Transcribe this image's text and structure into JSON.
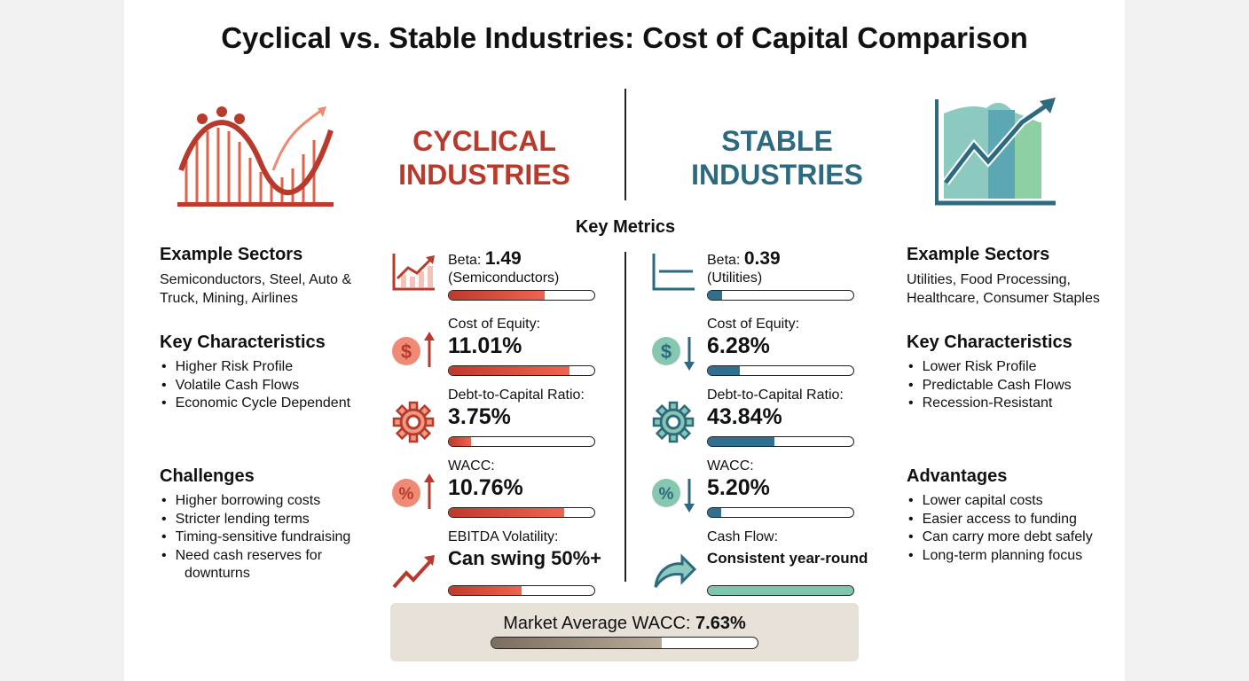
{
  "title": "Cyclical vs. Stable Industries: Cost of Capital Comparison",
  "cyclical": {
    "heading1": "CYCLICAL",
    "heading2": "INDUSTRIES",
    "color": "#b83a2c",
    "sectors_title": "Example Sectors",
    "sectors": "Semiconductors, Steel, Auto & Truck, Mining, Airlines",
    "char_title": "Key Characteristics",
    "characteristics": [
      "Higher Risk Profile",
      "Volatile Cash Flows",
      "Economic Cycle Dependent"
    ],
    "list_title": "Challenges",
    "list": [
      "Higher borrowing costs",
      "Stricter lending terms",
      "Timing-sensitive fundraising",
      "Need cash reserves for",
      "downturns"
    ],
    "metrics": [
      {
        "label": "Beta:",
        "value": "1.49",
        "sub": "(Semiconductors)",
        "fill": 0.66,
        "icon": "bar-chart-up-icon"
      },
      {
        "label": "Cost of Equity:",
        "value": "11.01%",
        "fill": 0.83,
        "icon": "dollar-up-icon"
      },
      {
        "label": "Debt-to-Capital Ratio:",
        "value": "3.75%",
        "fill": 0.15,
        "icon": "gear-icon"
      },
      {
        "label": "WACC:",
        "value": "10.76%",
        "fill": 0.79,
        "icon": "percent-up-icon"
      },
      {
        "label": "EBITDA Volatility:",
        "value": "Can swing 50%+",
        "fill": 0.5,
        "icon": "zigzag-trend-icon"
      }
    ]
  },
  "stable": {
    "heading1": "STABLE",
    "heading2": "INDUSTRIES",
    "color": "#2d6a80",
    "sectors_title": "Example Sectors",
    "sectors": "Utilities, Food Processing, Healthcare, Consumer Staples",
    "char_title": "Key Characteristics",
    "characteristics": [
      "Lower Risk Profile",
      "Predictable Cash Flows",
      "Recession-Resistant"
    ],
    "list_title": "Advantages",
    "list": [
      "Lower capital costs",
      "Easier access to funding",
      "Can carry more debt safely",
      "Long-term planning focus"
    ],
    "metrics": [
      {
        "label": "Beta:",
        "value": "0.39",
        "sub": "(Utilities)",
        "fill": 0.1,
        "icon": "flat-line-chart-icon"
      },
      {
        "label": "Cost of Equity:",
        "value": "6.28%",
        "fill": 0.22,
        "icon": "dollar-down-icon"
      },
      {
        "label": "Debt-to-Capital Ratio:",
        "value": "43.84%",
        "fill": 0.46,
        "icon": "gear-icon"
      },
      {
        "label": "WACC:",
        "value": "5.20%",
        "fill": 0.09,
        "icon": "percent-down-icon"
      },
      {
        "label": "Cash Flow:",
        "value": "Consistent year-round",
        "fill": 1.0,
        "icon": "curved-arrow-icon"
      }
    ]
  },
  "key_metrics": "Key Metrics",
  "market": {
    "label": "Market Average WACC:",
    "value": "7.63%",
    "fill": 0.64
  }
}
